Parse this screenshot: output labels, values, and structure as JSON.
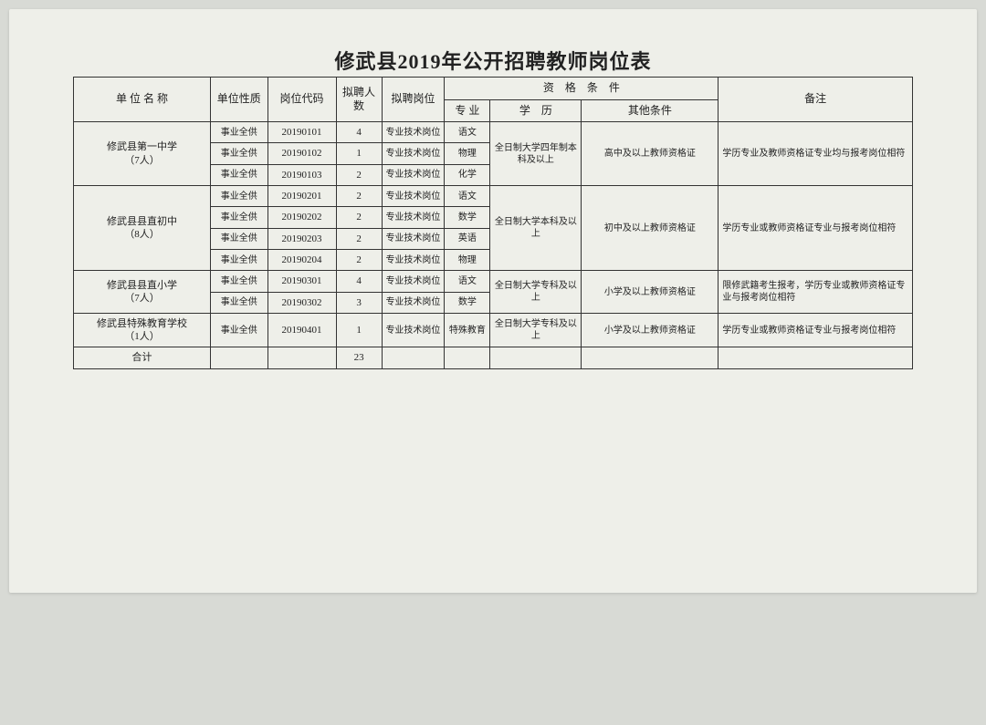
{
  "title": "修武县2019年公开招聘教师岗位表",
  "headers": {
    "unit": "单 位 名 称",
    "nature": "单位性质",
    "code": "岗位代码",
    "count": "拟聘人数",
    "post": "拟聘岗位",
    "qual_group": "资　格　条　件",
    "major": "专 业",
    "edu": "学　历",
    "other": "其他条件",
    "note": "备注"
  },
  "units": [
    {
      "name": "修武县第一中学\n（7人）",
      "edu": "全日制大学四年制本科及以上",
      "other": "高中及以上教师资格证",
      "note": "学历专业及教师资格证专业均与报考岗位相符",
      "rows": [
        {
          "nature": "事业全供",
          "code": "20190101",
          "count": "4",
          "post": "专业技术岗位",
          "major": "语文"
        },
        {
          "nature": "事业全供",
          "code": "20190102",
          "count": "1",
          "post": "专业技术岗位",
          "major": "物理"
        },
        {
          "nature": "事业全供",
          "code": "20190103",
          "count": "2",
          "post": "专业技术岗位",
          "major": "化学"
        }
      ]
    },
    {
      "name": "修武县县直初中\n（8人）",
      "edu": "全日制大学本科及以上",
      "other": "初中及以上教师资格证",
      "note": "学历专业或教师资格证专业与报考岗位相符",
      "rows": [
        {
          "nature": "事业全供",
          "code": "20190201",
          "count": "2",
          "post": "专业技术岗位",
          "major": "语文"
        },
        {
          "nature": "事业全供",
          "code": "20190202",
          "count": "2",
          "post": "专业技术岗位",
          "major": "数学"
        },
        {
          "nature": "事业全供",
          "code": "20190203",
          "count": "2",
          "post": "专业技术岗位",
          "major": "英语"
        },
        {
          "nature": "事业全供",
          "code": "20190204",
          "count": "2",
          "post": "专业技术岗位",
          "major": "物理"
        }
      ]
    },
    {
      "name": "修武县县直小学\n（7人）",
      "edu": "全日制大学专科及以上",
      "other": "小学及以上教师资格证",
      "note": "限修武籍考生报考，学历专业或教师资格证专业与报考岗位相符",
      "rows": [
        {
          "nature": "事业全供",
          "code": "20190301",
          "count": "4",
          "post": "专业技术岗位",
          "major": "语文"
        },
        {
          "nature": "事业全供",
          "code": "20190302",
          "count": "3",
          "post": "专业技术岗位",
          "major": "数学"
        }
      ]
    },
    {
      "name": "修武县特殊教育学校\n（1人）",
      "edu": "全日制大学专科及以上",
      "other": "小学及以上教师资格证",
      "note": "学历专业或教师资格证专业与报考岗位相符",
      "rows": [
        {
          "nature": "事业全供",
          "code": "20190401",
          "count": "1",
          "post": "专业技术岗位",
          "major": "特殊教育"
        }
      ]
    }
  ],
  "total_label": "合计",
  "total_count": "23"
}
